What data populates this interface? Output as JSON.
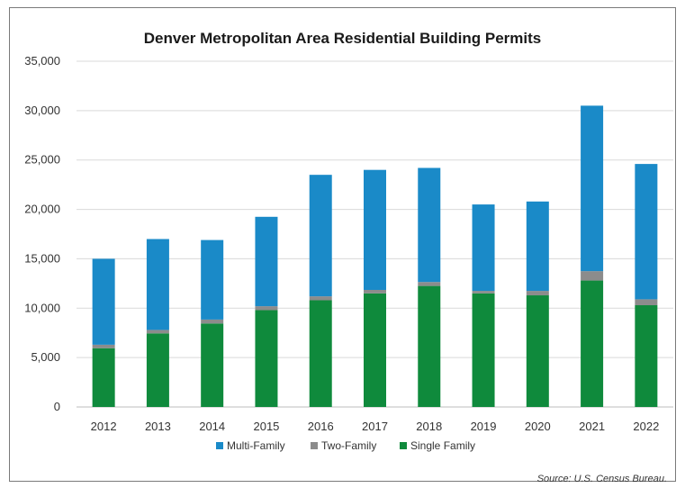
{
  "chart_data": {
    "type": "bar",
    "stacked": true,
    "title": "Denver Metropolitan Area Residential Building Permits",
    "xlabel": "",
    "ylabel": "",
    "ylim": [
      0,
      35000
    ],
    "yticks": [
      "0",
      "5,000",
      "10,000",
      "15,000",
      "20,000",
      "25,000",
      "30,000",
      "35,000"
    ],
    "categories": [
      "2012",
      "2013",
      "2014",
      "2015",
      "2016",
      "2017",
      "2018",
      "2019",
      "2020",
      "2021",
      "2022"
    ],
    "series": [
      {
        "name": "Single Family",
        "color": "#0f8a3c",
        "values": [
          5950,
          7450,
          8450,
          9800,
          10800,
          11500,
          12250,
          11500,
          11300,
          12800,
          10300
        ]
      },
      {
        "name": "Two-Family",
        "color": "#8c8c8c",
        "values": [
          350,
          350,
          400,
          400,
          400,
          350,
          400,
          250,
          450,
          950,
          600
        ]
      },
      {
        "name": "Multi-Family",
        "color": "#1a8ac8",
        "values": [
          8700,
          9200,
          8050,
          9050,
          12300,
          12150,
          11550,
          8750,
          9050,
          16750,
          13700
        ]
      }
    ],
    "legend": {
      "position": "bottom",
      "order": [
        "Multi-Family",
        "Two-Family",
        "Single Family"
      ]
    },
    "grid": true,
    "source": "Source: U.S. Census Bureau."
  }
}
